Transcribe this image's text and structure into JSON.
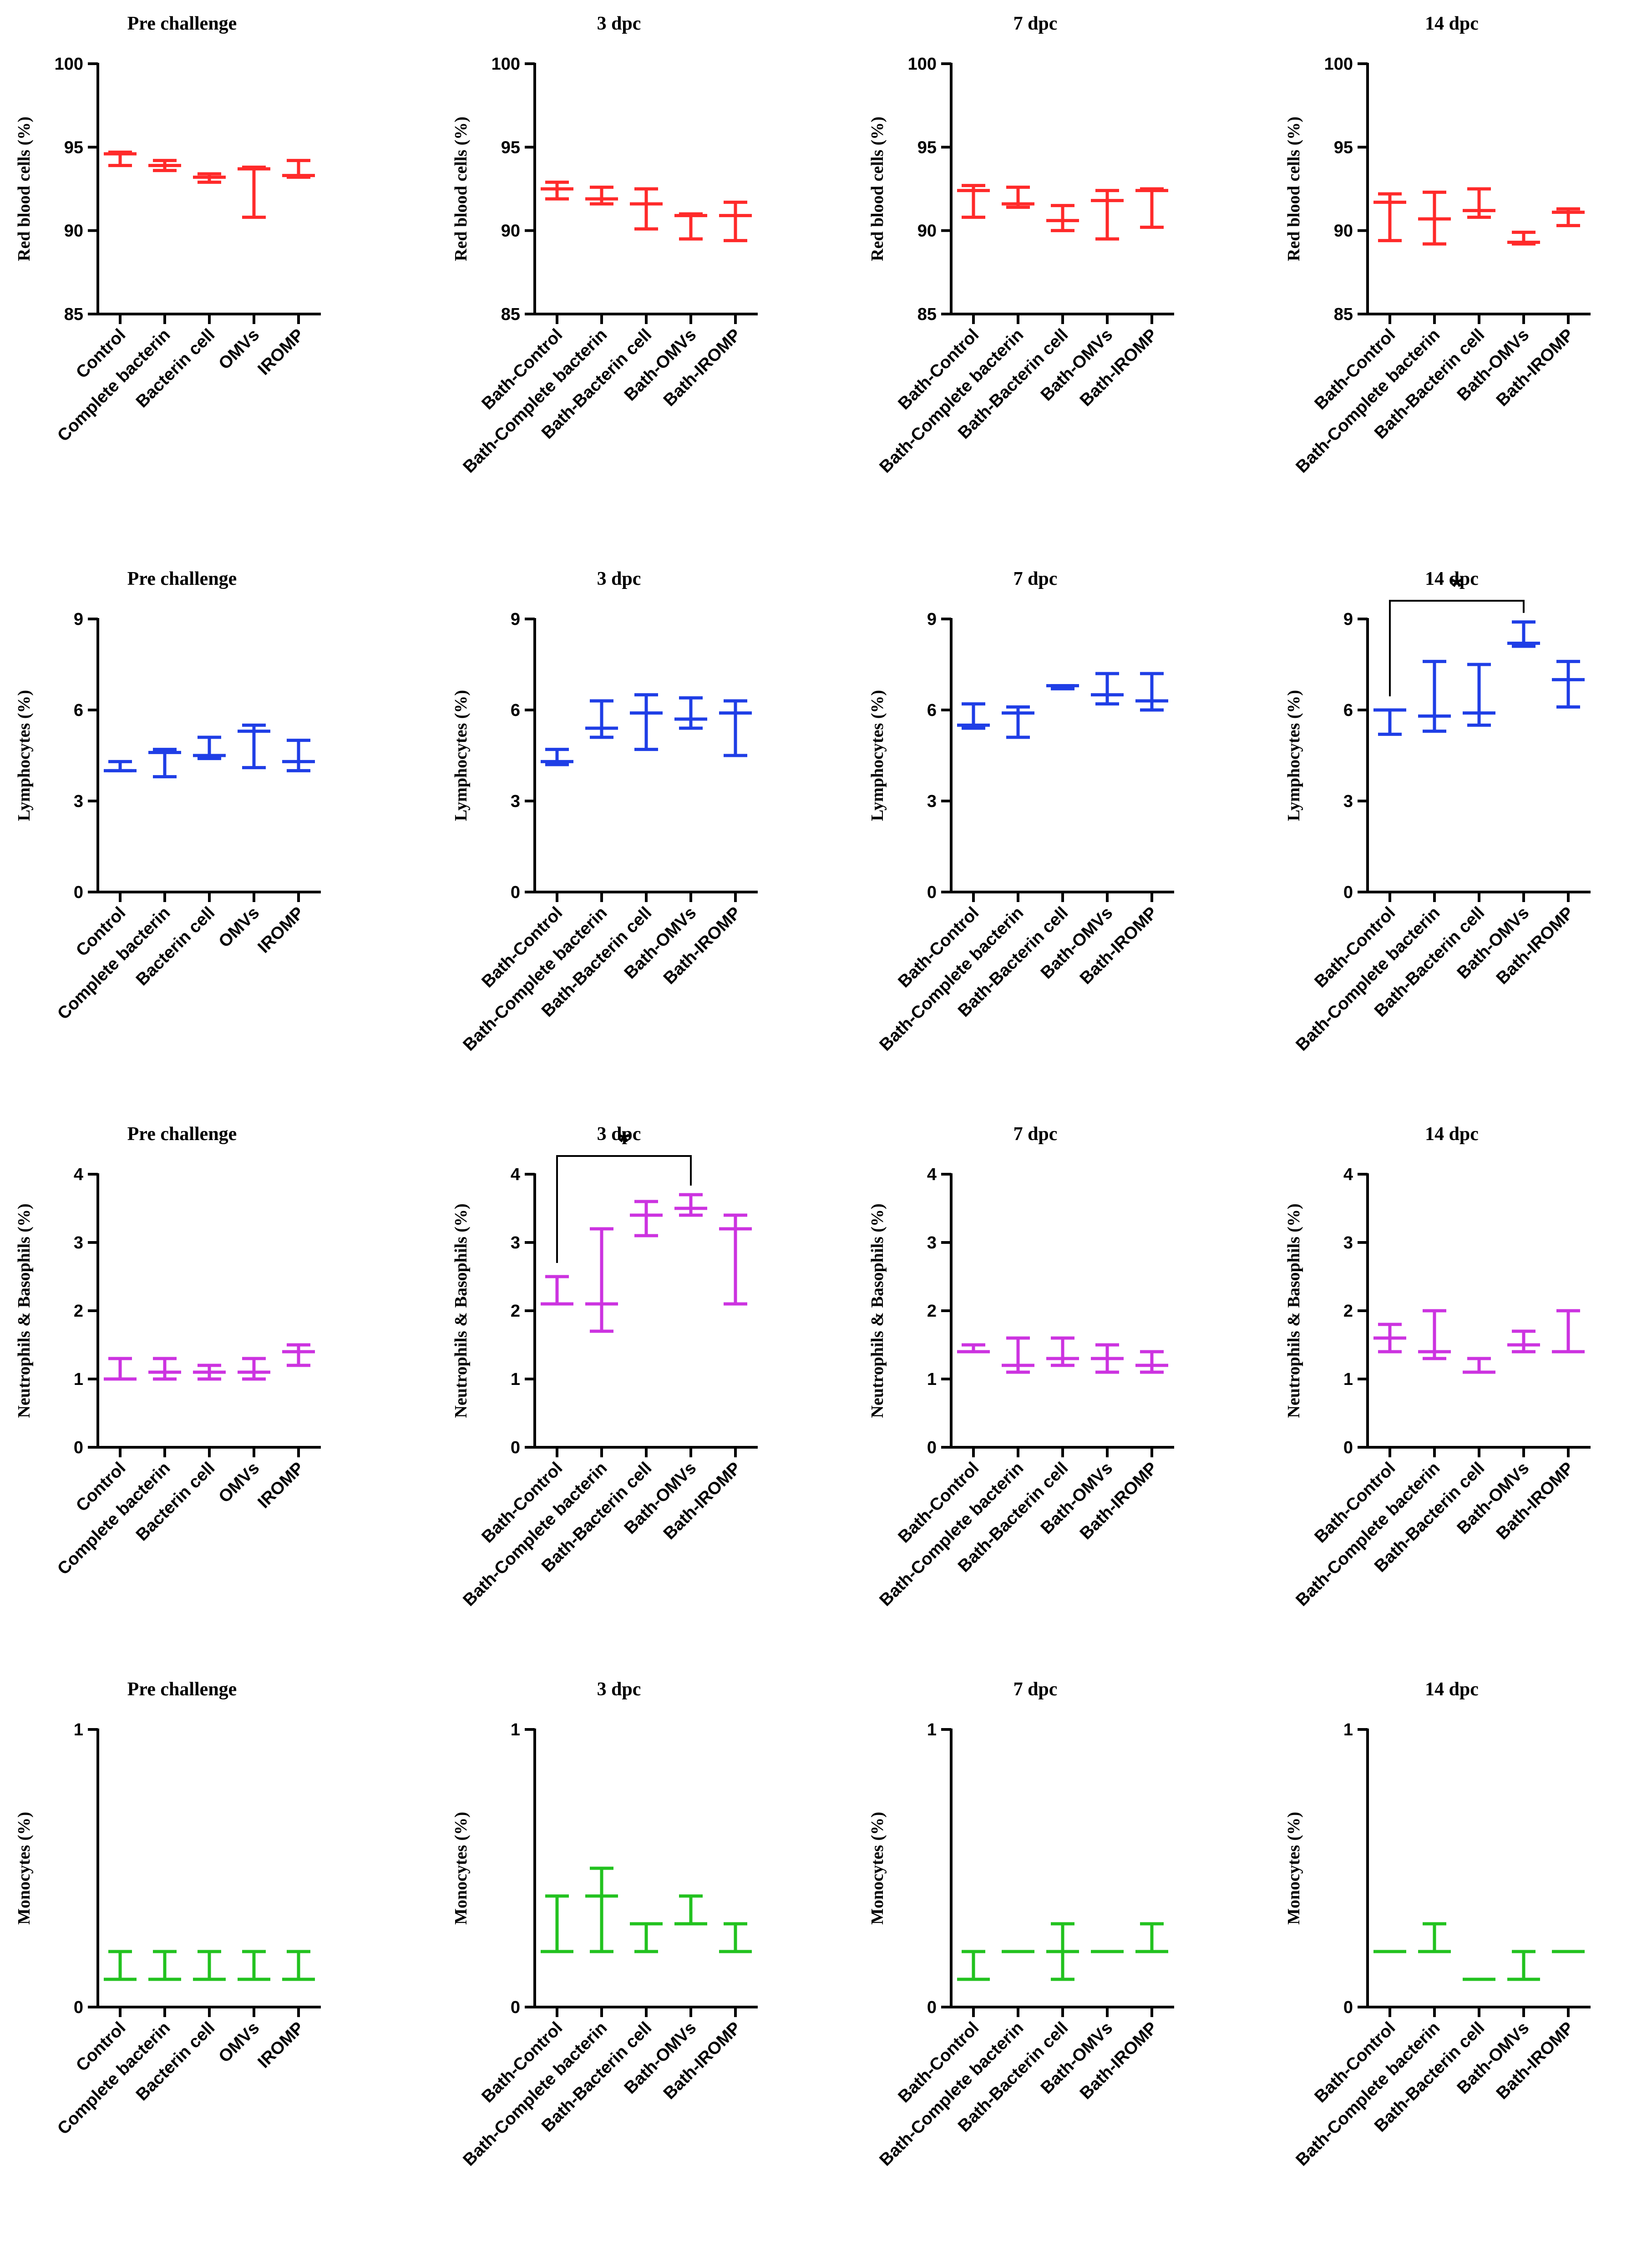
{
  "colors": {
    "red": "#ff2a2a",
    "blue": "#1f3ee6",
    "magenta": "#cc33e0",
    "green": "#22c21f",
    "axis": "#000000"
  },
  "chart_data": [
    {
      "type": "errorbar",
      "row": 0,
      "col": 0,
      "title": "Pre challenge",
      "ylabel": "Red blood cells (%)",
      "ylim": [
        85,
        100
      ],
      "yticks": [
        85,
        90,
        95,
        100
      ],
      "ytick_labels": [
        "85",
        "90",
        "95",
        "100"
      ],
      "color": "red",
      "categories": [
        "Control",
        "Complete bacterin",
        "Bacterin cell",
        "OMVs",
        "IROMP"
      ],
      "points": [
        {
          "mean": 94.6,
          "low": 93.9,
          "high": 94.7
        },
        {
          "mean": 93.9,
          "low": 93.6,
          "high": 94.2
        },
        {
          "mean": 93.2,
          "low": 92.9,
          "high": 93.4
        },
        {
          "mean": 93.7,
          "low": 90.8,
          "high": 93.8
        },
        {
          "mean": 93.3,
          "low": 93.2,
          "high": 94.2
        }
      ]
    },
    {
      "type": "errorbar",
      "row": 0,
      "col": 1,
      "title": "3 dpc",
      "ylabel": "Red blood cells (%)",
      "ylim": [
        85,
        100
      ],
      "yticks": [
        85,
        90,
        95,
        100
      ],
      "ytick_labels": [
        "85",
        "90",
        "95",
        "100"
      ],
      "color": "red",
      "categories": [
        "Bath-Control",
        "Bath-Complete bacterin",
        "Bath-Bacterin cell",
        "Bath-OMVs",
        "Bath-IROMP"
      ],
      "points": [
        {
          "mean": 92.5,
          "low": 91.9,
          "high": 92.9
        },
        {
          "mean": 91.9,
          "low": 91.6,
          "high": 92.6
        },
        {
          "mean": 91.6,
          "low": 90.1,
          "high": 92.5
        },
        {
          "mean": 90.9,
          "low": 89.5,
          "high": 91.0
        },
        {
          "mean": 90.9,
          "low": 89.4,
          "high": 91.7
        }
      ]
    },
    {
      "type": "errorbar",
      "row": 0,
      "col": 2,
      "title": "7 dpc",
      "ylabel": "Red blood cells (%)",
      "ylim": [
        85,
        100
      ],
      "yticks": [
        85,
        90,
        95,
        100
      ],
      "ytick_labels": [
        "85",
        "90",
        "95",
        "100"
      ],
      "color": "red",
      "categories": [
        "Bath-Control",
        "Bath-Complete bacterin",
        "Bath-Bacterin cell",
        "Bath-OMVs",
        "Bath-IROMP"
      ],
      "points": [
        {
          "mean": 92.4,
          "low": 90.8,
          "high": 92.7
        },
        {
          "mean": 91.6,
          "low": 91.4,
          "high": 92.6
        },
        {
          "mean": 90.6,
          "low": 90.0,
          "high": 91.5
        },
        {
          "mean": 91.8,
          "low": 89.5,
          "high": 92.4
        },
        {
          "mean": 92.4,
          "low": 90.2,
          "high": 92.5
        }
      ]
    },
    {
      "type": "errorbar",
      "row": 0,
      "col": 3,
      "title": "14 dpc",
      "ylabel": "Red blood cells (%)",
      "ylim": [
        85,
        100
      ],
      "yticks": [
        85,
        90,
        95,
        100
      ],
      "ytick_labels": [
        "85",
        "90",
        "95",
        "100"
      ],
      "color": "red",
      "categories": [
        "Bath-Control",
        "Bath-Complete bacterin",
        "Bath-Bacterin cell",
        "Bath-OMVs",
        "Bath-IROMP"
      ],
      "points": [
        {
          "mean": 91.7,
          "low": 89.4,
          "high": 92.2
        },
        {
          "mean": 90.7,
          "low": 89.2,
          "high": 92.3
        },
        {
          "mean": 91.2,
          "low": 90.8,
          "high": 92.5
        },
        {
          "mean": 89.3,
          "low": 89.2,
          "high": 89.9
        },
        {
          "mean": 91.1,
          "low": 90.3,
          "high": 91.3
        }
      ]
    },
    {
      "type": "errorbar",
      "row": 1,
      "col": 0,
      "title": "Pre challenge",
      "ylabel": "Lymphocytes (%)",
      "ylim": [
        0,
        9
      ],
      "yticks": [
        0,
        3,
        6,
        9
      ],
      "ytick_labels": [
        "0",
        "3",
        "6",
        "9"
      ],
      "color": "blue",
      "categories": [
        "Control",
        "Complete bacterin",
        "Bacterin cell",
        "OMVs",
        "IROMP"
      ],
      "points": [
        {
          "mean": 4.0,
          "low": 4.0,
          "high": 4.3
        },
        {
          "mean": 4.6,
          "low": 3.8,
          "high": 4.7
        },
        {
          "mean": 4.5,
          "low": 4.4,
          "high": 5.1
        },
        {
          "mean": 5.3,
          "low": 4.1,
          "high": 5.5
        },
        {
          "mean": 4.3,
          "low": 4.0,
          "high": 5.0
        }
      ]
    },
    {
      "type": "errorbar",
      "row": 1,
      "col": 1,
      "title": "3 dpc",
      "ylabel": "Lymphocytes (%)",
      "ylim": [
        0,
        9
      ],
      "yticks": [
        0,
        3,
        6,
        9
      ],
      "ytick_labels": [
        "0",
        "3",
        "6",
        "9"
      ],
      "color": "blue",
      "categories": [
        "Bath-Control",
        "Bath-Complete bacterin",
        "Bath-Bacterin cell",
        "Bath-OMVs",
        "Bath-IROMP"
      ],
      "points": [
        {
          "mean": 4.3,
          "low": 4.2,
          "high": 4.7
        },
        {
          "mean": 5.4,
          "low": 5.1,
          "high": 6.3
        },
        {
          "mean": 5.9,
          "low": 4.7,
          "high": 6.5
        },
        {
          "mean": 5.7,
          "low": 5.4,
          "high": 6.4
        },
        {
          "mean": 5.9,
          "low": 4.5,
          "high": 6.3
        }
      ]
    },
    {
      "type": "errorbar",
      "row": 1,
      "col": 2,
      "title": "7 dpc",
      "ylabel": "Lymphocytes (%)",
      "ylim": [
        0,
        9
      ],
      "yticks": [
        0,
        3,
        6,
        9
      ],
      "ytick_labels": [
        "0",
        "3",
        "6",
        "9"
      ],
      "color": "blue",
      "categories": [
        "Bath-Control",
        "Bath-Complete bacterin",
        "Bath-Bacterin cell",
        "Bath-OMVs",
        "Bath-IROMP"
      ],
      "points": [
        {
          "mean": 5.5,
          "low": 5.4,
          "high": 6.2
        },
        {
          "mean": 5.9,
          "low": 5.1,
          "high": 6.1
        },
        {
          "mean": 6.8,
          "low": 6.7,
          "high": 6.8
        },
        {
          "mean": 6.5,
          "low": 6.2,
          "high": 7.2
        },
        {
          "mean": 6.3,
          "low": 6.0,
          "high": 7.2
        }
      ]
    },
    {
      "type": "errorbar",
      "row": 1,
      "col": 3,
      "title": "14 dpc",
      "ylabel": "Lymphocytes (%)",
      "ylim": [
        0,
        9
      ],
      "yticks": [
        0,
        3,
        6,
        9
      ],
      "ytick_labels": [
        "0",
        "3",
        "6",
        "9"
      ],
      "color": "blue",
      "categories": [
        "Bath-Control",
        "Bath-Complete bacterin",
        "Bath-Bacterin cell",
        "Bath-OMVs",
        "Bath-IROMP"
      ],
      "points": [
        {
          "mean": 6.0,
          "low": 5.2,
          "high": 6.0
        },
        {
          "mean": 5.8,
          "low": 5.3,
          "high": 7.6
        },
        {
          "mean": 5.9,
          "low": 5.5,
          "high": 7.5
        },
        {
          "mean": 8.2,
          "low": 8.1,
          "high": 8.9
        },
        {
          "mean": 7.0,
          "low": 6.1,
          "high": 7.6
        }
      ],
      "significance": {
        "from": 0,
        "to": 3,
        "label": "*"
      }
    },
    {
      "type": "errorbar",
      "row": 2,
      "col": 0,
      "title": "Pre challenge",
      "ylabel": "Neutrophils & Basophils (%)",
      "ylim": [
        0,
        4
      ],
      "yticks": [
        0,
        1,
        2,
        3,
        4
      ],
      "ytick_labels": [
        "0",
        "1",
        "2",
        "3",
        "4"
      ],
      "color": "magenta",
      "categories": [
        "Control",
        "Complete bacterin",
        "Bacterin cell",
        "OMVs",
        "IROMP"
      ],
      "points": [
        {
          "mean": 1.0,
          "low": 1.0,
          "high": 1.3
        },
        {
          "mean": 1.1,
          "low": 1.0,
          "high": 1.3
        },
        {
          "mean": 1.1,
          "low": 1.0,
          "high": 1.2
        },
        {
          "mean": 1.1,
          "low": 1.0,
          "high": 1.3
        },
        {
          "mean": 1.4,
          "low": 1.2,
          "high": 1.5
        }
      ]
    },
    {
      "type": "errorbar",
      "row": 2,
      "col": 1,
      "title": "3 dpc",
      "ylabel": "Neutrophils & Basophils (%)",
      "ylim": [
        0,
        4
      ],
      "yticks": [
        0,
        1,
        2,
        3,
        4
      ],
      "ytick_labels": [
        "0",
        "1",
        "2",
        "3",
        "4"
      ],
      "color": "magenta",
      "categories": [
        "Bath-Control",
        "Bath-Complete bacterin",
        "Bath-Bacterin cell",
        "Bath-OMVs",
        "Bath-IROMP"
      ],
      "points": [
        {
          "mean": 2.1,
          "low": 2.1,
          "high": 2.5
        },
        {
          "mean": 2.1,
          "low": 1.7,
          "high": 3.2
        },
        {
          "mean": 3.4,
          "low": 3.1,
          "high": 3.6
        },
        {
          "mean": 3.5,
          "low": 3.4,
          "high": 3.7
        },
        {
          "mean": 3.2,
          "low": 2.1,
          "high": 3.4
        }
      ],
      "significance": {
        "from": 0,
        "to": 3,
        "label": "*"
      }
    },
    {
      "type": "errorbar",
      "row": 2,
      "col": 2,
      "title": "7 dpc",
      "ylabel": "Neutrophils & Basophils (%)",
      "ylim": [
        0,
        4
      ],
      "yticks": [
        0,
        1,
        2,
        3,
        4
      ],
      "ytick_labels": [
        "0",
        "1",
        "2",
        "3",
        "4"
      ],
      "color": "magenta",
      "categories": [
        "Bath-Control",
        "Bath-Complete bacterin",
        "Bath-Bacterin cell",
        "Bath-OMVs",
        "Bath-IROMP"
      ],
      "points": [
        {
          "mean": 1.4,
          "low": 1.4,
          "high": 1.5
        },
        {
          "mean": 1.2,
          "low": 1.1,
          "high": 1.6
        },
        {
          "mean": 1.3,
          "low": 1.2,
          "high": 1.6
        },
        {
          "mean": 1.3,
          "low": 1.1,
          "high": 1.5
        },
        {
          "mean": 1.2,
          "low": 1.1,
          "high": 1.4
        }
      ]
    },
    {
      "type": "errorbar",
      "row": 2,
      "col": 3,
      "title": "14 dpc",
      "ylabel": "Neutrophils & Basophils (%)",
      "ylim": [
        0,
        4
      ],
      "yticks": [
        0,
        1,
        2,
        3,
        4
      ],
      "ytick_labels": [
        "0",
        "1",
        "2",
        "3",
        "4"
      ],
      "color": "magenta",
      "categories": [
        "Bath-Control",
        "Bath-Complete bacterin",
        "Bath-Bacterin cell",
        "Bath-OMVs",
        "Bath-IROMP"
      ],
      "points": [
        {
          "mean": 1.6,
          "low": 1.4,
          "high": 1.8
        },
        {
          "mean": 1.4,
          "low": 1.3,
          "high": 2.0
        },
        {
          "mean": 1.1,
          "low": 1.1,
          "high": 1.3
        },
        {
          "mean": 1.5,
          "low": 1.4,
          "high": 1.7
        },
        {
          "mean": 1.4,
          "low": 1.4,
          "high": 2.0
        }
      ]
    },
    {
      "type": "errorbar",
      "row": 3,
      "col": 0,
      "title": "Pre challenge",
      "ylabel": "Monocytes (%)",
      "ylim": [
        0,
        1
      ],
      "yticks": [
        0,
        1
      ],
      "ytick_labels": [
        "0",
        "1"
      ],
      "color": "green",
      "categories": [
        "Control",
        "Complete bacterin",
        "Bacterin cell",
        "OMVs",
        "IROMP"
      ],
      "points": [
        {
          "mean": 0.1,
          "low": 0.1,
          "high": 0.2
        },
        {
          "mean": 0.1,
          "low": 0.1,
          "high": 0.2
        },
        {
          "mean": 0.1,
          "low": 0.1,
          "high": 0.2
        },
        {
          "mean": 0.1,
          "low": 0.1,
          "high": 0.2
        },
        {
          "mean": 0.1,
          "low": 0.1,
          "high": 0.2
        }
      ]
    },
    {
      "type": "errorbar",
      "row": 3,
      "col": 1,
      "title": "3 dpc",
      "ylabel": "Monocytes (%)",
      "ylim": [
        0,
        1
      ],
      "yticks": [
        0,
        1
      ],
      "ytick_labels": [
        "0",
        "1"
      ],
      "color": "green",
      "categories": [
        "Bath-Control",
        "Bath-Complete bacterin",
        "Bath-Bacterin cell",
        "Bath-OMVs",
        "Bath-IROMP"
      ],
      "points": [
        {
          "mean": 0.2,
          "low": 0.2,
          "high": 0.4
        },
        {
          "mean": 0.4,
          "low": 0.2,
          "high": 0.5
        },
        {
          "mean": 0.3,
          "low": 0.2,
          "high": 0.3
        },
        {
          "mean": 0.3,
          "low": 0.3,
          "high": 0.4
        },
        {
          "mean": 0.2,
          "low": 0.2,
          "high": 0.3
        }
      ]
    },
    {
      "type": "errorbar",
      "row": 3,
      "col": 2,
      "title": "7 dpc",
      "ylabel": "Monocytes (%)",
      "ylim": [
        0,
        1
      ],
      "yticks": [
        0,
        1
      ],
      "ytick_labels": [
        "0",
        "1"
      ],
      "color": "green",
      "categories": [
        "Bath-Control",
        "Bath-Complete bacterin",
        "Bath-Bacterin cell",
        "Bath-OMVs",
        "Bath-IROMP"
      ],
      "points": [
        {
          "mean": 0.1,
          "low": 0.1,
          "high": 0.2
        },
        {
          "mean": 0.2,
          "low": 0.2,
          "high": 0.2
        },
        {
          "mean": 0.2,
          "low": 0.1,
          "high": 0.3
        },
        {
          "mean": 0.2,
          "low": 0.2,
          "high": 0.2
        },
        {
          "mean": 0.2,
          "low": 0.2,
          "high": 0.3
        }
      ]
    },
    {
      "type": "errorbar",
      "row": 3,
      "col": 3,
      "title": "14 dpc",
      "ylabel": "Monocytes (%)",
      "ylim": [
        0,
        1
      ],
      "yticks": [
        0,
        1
      ],
      "ytick_labels": [
        "0",
        "1"
      ],
      "color": "green",
      "categories": [
        "Bath-Control",
        "Bath-Complete bacterin",
        "Bath-Bacterin cell",
        "Bath-OMVs",
        "Bath-IROMP"
      ],
      "points": [
        {
          "mean": 0.2,
          "low": 0.2,
          "high": 0.2
        },
        {
          "mean": 0.2,
          "low": 0.2,
          "high": 0.3
        },
        {
          "mean": 0.1,
          "low": 0.1,
          "high": 0.1
        },
        {
          "mean": 0.1,
          "low": 0.1,
          "high": 0.2
        },
        {
          "mean": 0.2,
          "low": 0.2,
          "high": 0.2
        }
      ]
    }
  ]
}
